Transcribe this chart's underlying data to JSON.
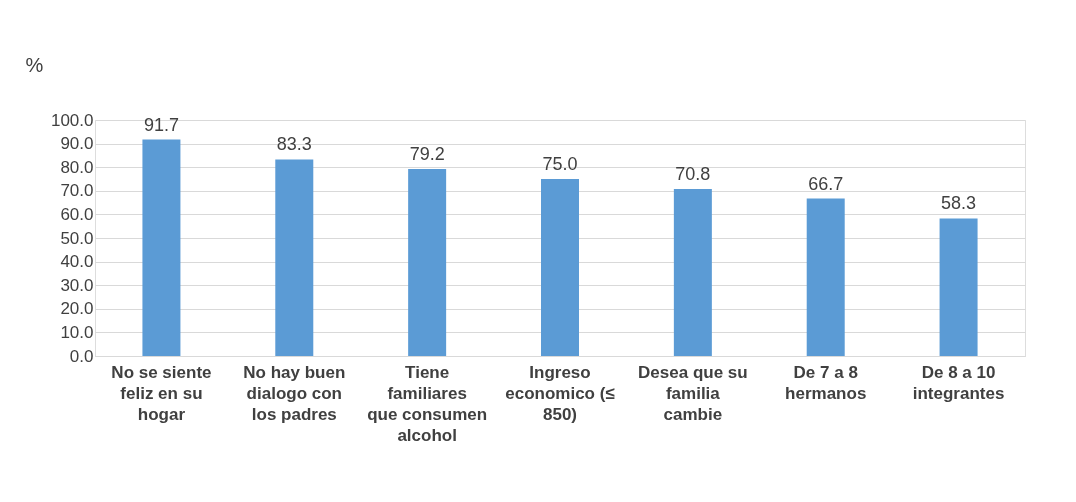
{
  "chart_data": {
    "type": "bar",
    "ylabel": "%",
    "categories": [
      "No se siente feliz en su hogar",
      "No hay buen dialogo con los padres",
      "Tiene familiares que consumen alcohol",
      "Ingreso economico (≤ 850)",
      "Desea que su familia cambie",
      "De 7 a 8 hermanos",
      "De 8 a 10 integrantes"
    ],
    "values": [
      91.7,
      83.3,
      79.2,
      75.0,
      70.8,
      66.7,
      58.3
    ],
    "value_labels": [
      "91.7",
      "83.3",
      "79.2",
      "75.0",
      "70.8",
      "66.7",
      "58.3"
    ],
    "color": "#5b9bd5",
    "ylim": [
      0,
      100
    ],
    "yticks": [
      {
        "value": 0,
        "label": "0.0"
      },
      {
        "value": 10,
        "label": "10.0"
      },
      {
        "value": 20,
        "label": "20.0"
      },
      {
        "value": 30,
        "label": "30.0"
      },
      {
        "value": 40,
        "label": "40.0"
      },
      {
        "value": 50,
        "label": "50.0"
      },
      {
        "value": 60,
        "label": "60.0"
      },
      {
        "value": 70,
        "label": "70.0"
      },
      {
        "value": 80,
        "label": "80.0"
      },
      {
        "value": 90,
        "label": "90.0"
      },
      {
        "value": 100,
        "label": "100.0"
      }
    ],
    "grid": "y",
    "data_labels": true
  }
}
